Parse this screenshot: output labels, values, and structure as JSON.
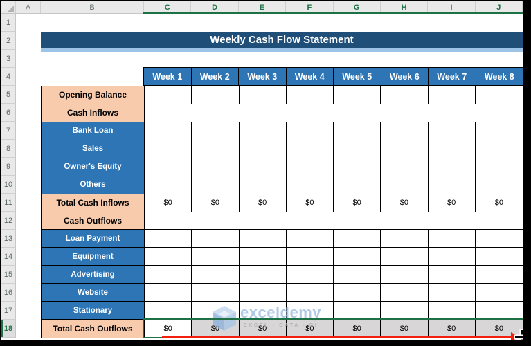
{
  "spreadsheet": {
    "column_headers": [
      "A",
      "B",
      "C",
      "D",
      "E",
      "F",
      "G",
      "H",
      "I",
      "J"
    ],
    "selected_columns": [
      "C",
      "D",
      "E",
      "F",
      "G",
      "H",
      "I",
      "J"
    ],
    "row_headers": [
      "1",
      "2",
      "3",
      "4",
      "5",
      "6",
      "7",
      "8",
      "9",
      "10",
      "11",
      "12",
      "13",
      "14",
      "15",
      "16",
      "17",
      "18"
    ],
    "selected_row": "18"
  },
  "title": "Weekly Cash Flow Statement",
  "week_headers": [
    "Week 1",
    "Week 2",
    "Week 3",
    "Week 4",
    "Week 5",
    "Week 6",
    "Week 7",
    "Week 8"
  ],
  "table_rows": [
    {
      "row": "5",
      "label": "Opening Balance",
      "style": "peach",
      "kind": "cells"
    },
    {
      "row": "6",
      "label": "Cash Inflows",
      "style": "peach",
      "kind": "merged"
    },
    {
      "row": "7",
      "label": "Bank Loan",
      "style": "blue",
      "kind": "cells"
    },
    {
      "row": "8",
      "label": "Sales",
      "style": "blue",
      "kind": "cells"
    },
    {
      "row": "9",
      "label": "Owner's Equity",
      "style": "blue",
      "kind": "cells"
    },
    {
      "row": "10",
      "label": "Others",
      "style": "blue",
      "kind": "cells"
    },
    {
      "row": "11",
      "label": "Total Cash Inflows",
      "style": "peach",
      "kind": "values",
      "values": [
        "$0",
        "$0",
        "$0",
        "$0",
        "$0",
        "$0",
        "$0",
        "$0"
      ]
    },
    {
      "row": "12",
      "label": "Cash Outflows",
      "style": "peach",
      "kind": "merged"
    },
    {
      "row": "13",
      "label": "Loan Payment",
      "style": "blue",
      "kind": "cells"
    },
    {
      "row": "14",
      "label": "Equipment",
      "style": "blue",
      "kind": "cells"
    },
    {
      "row": "15",
      "label": "Advertising",
      "style": "blue",
      "kind": "cells"
    },
    {
      "row": "16",
      "label": "Website",
      "style": "blue",
      "kind": "cells"
    },
    {
      "row": "17",
      "label": "Stationary",
      "style": "blue",
      "kind": "cells"
    },
    {
      "row": "18",
      "label": "Total Cash Outflows",
      "style": "peach",
      "kind": "values",
      "selected": true,
      "values": [
        "$0",
        "$0",
        "$0",
        "$0",
        "$0",
        "$0",
        "$0",
        "$0"
      ]
    }
  ],
  "watermark": {
    "brand": "exceldemy",
    "tagline": "EXCEL - DATA - BI"
  },
  "annotations": {
    "cursor_icon": "plus-crosshair-cursor",
    "arrow_icon": "red-right-drag-arrow"
  },
  "colors": {
    "banner": "#1F4E79",
    "banner_stripe": "#9DC3E6",
    "week_blue": "#2E75B6",
    "item_blue": "#2E75B6",
    "peach": "#F8CBAD",
    "selection_green": "#1E7145",
    "arrow_red": "#F51F0F",
    "selected_fill": "#D8D6D6"
  }
}
